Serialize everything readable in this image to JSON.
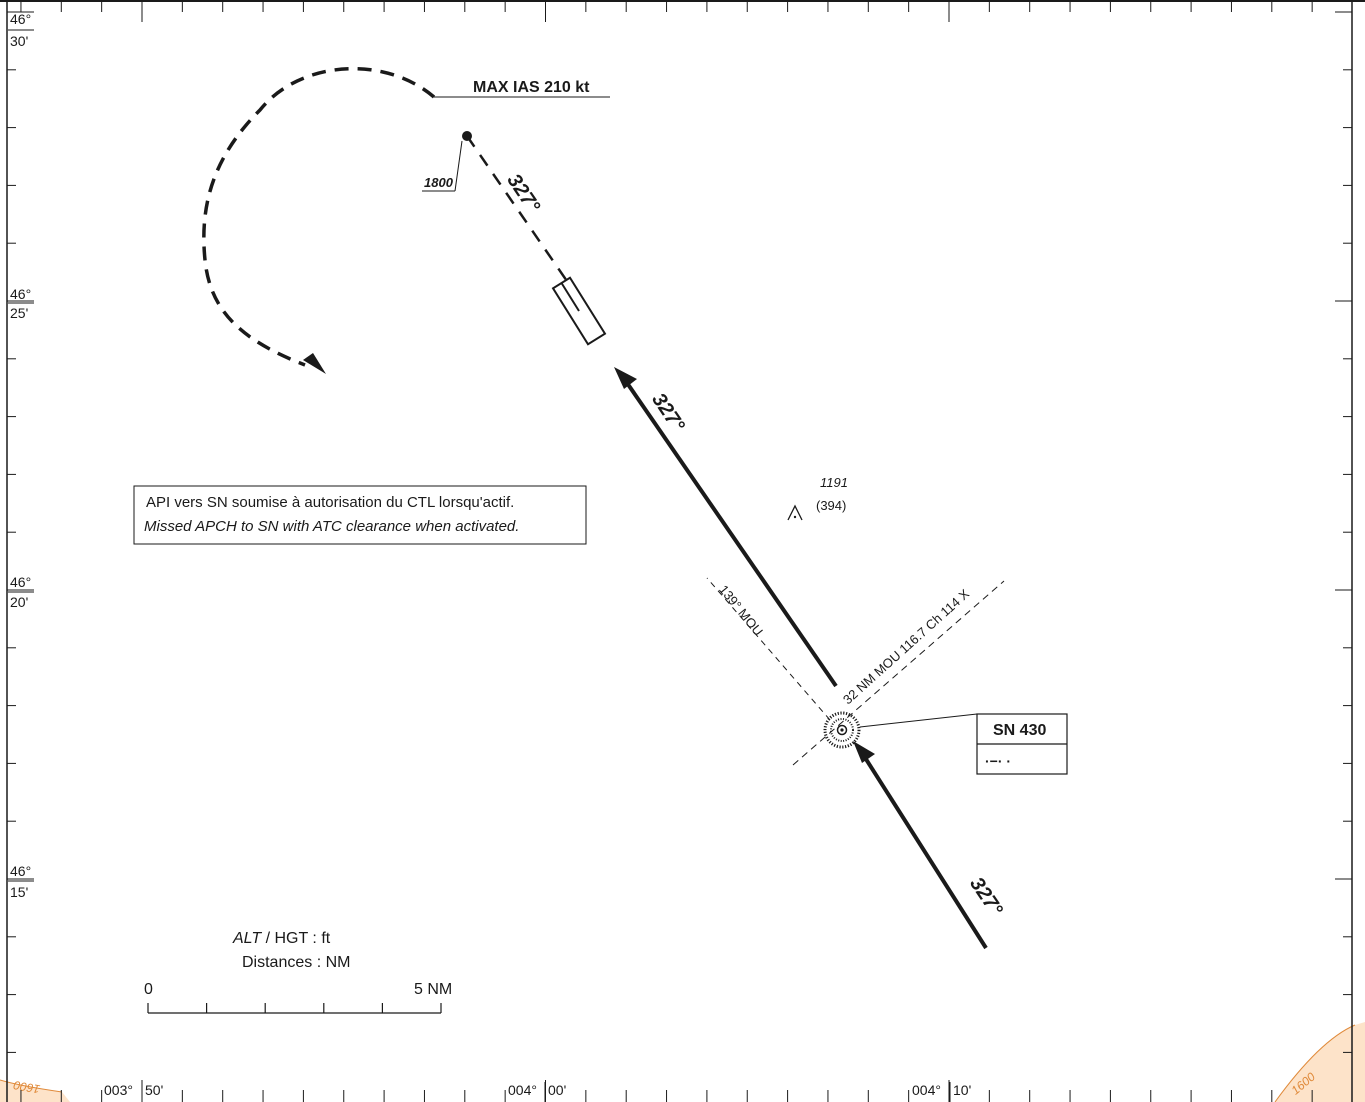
{
  "latitude_labels": [
    {
      "deg": "46°",
      "min": "30'"
    },
    {
      "deg": "46°",
      "min": "25'"
    },
    {
      "deg": "46°",
      "min": "20'"
    },
    {
      "deg": "46°",
      "min": "15'"
    }
  ],
  "longitude_labels": [
    {
      "deg": "003°",
      "min": "50'"
    },
    {
      "deg": "004°",
      "min": "00'"
    },
    {
      "deg": "004°",
      "min": "10'"
    }
  ],
  "missed_approach": {
    "speed_limit": "MAX IAS 210 kt",
    "turn_altitude": "1800",
    "outbound_track": "327°"
  },
  "final_track": "327°",
  "inbound_track": "327°",
  "radial": {
    "label": "139° MOU"
  },
  "dme_arc": {
    "label": "32 NM MOU 116.7 Ch 114 X"
  },
  "obstacle": {
    "altitude": "1191",
    "height": "(394)"
  },
  "fix": {
    "name": "SN 430",
    "morse": "·−· ·"
  },
  "note": {
    "fr": "API vers SN soumise à autorisation du CTL lorsqu'actif.",
    "en": "Missed APCH to SN with ATC clearance when activated."
  },
  "units": {
    "alt_italic": "ALT",
    "alt_rest": " / HGT : ft",
    "distances": "Distances : NM"
  },
  "scale": {
    "start": "0",
    "end": "5 NM"
  },
  "contours": [
    "1600",
    "1600"
  ],
  "colors": {
    "ink": "#1a1a1a",
    "terrain_fill": "#fde3c9",
    "terrain_line": "#e08a3a"
  }
}
